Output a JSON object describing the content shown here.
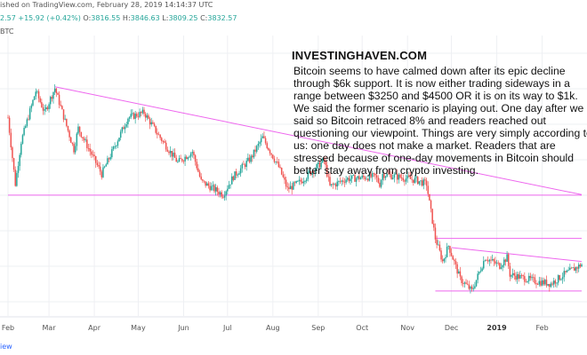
{
  "header": {
    "published": "ished on TradingView.com, February 28, 2019 14:14:37 UTC",
    "ohlc_prefix": "2.57",
    "change": "+15.92 (+0.42%)",
    "o_label": "O:",
    "o_value": "3816.55",
    "h_label": "H:",
    "h_value": "3846.63",
    "l_label": "L:",
    "l_value": "3809.25",
    "c_label": "C:",
    "c_value": "3832.57",
    "symbol": "BTC"
  },
  "annotation": {
    "brand": "INVESTINGHAVEN.COM",
    "text": "Bitcoin seems to have calmed down after its epic decline through $6k support. It is now either trading sideways in a range between $3250 and $4500 OR it is on its way to $1k. We said the former scenario is playing out. One day after we said so Bitcoin retraced 8% and readers reached out questioning our viewpoint. Things are very simply according to us: one day does not make a market. Readers that are stressed because of one-day movements in Bitcoin should better stay away from crypto investing."
  },
  "footer": {
    "link": "iew"
  },
  "colors": {
    "up": "#26a69a",
    "down": "#ef5350",
    "trendline": "#ee66ee",
    "grid": "#eef0f3"
  },
  "chart_data": {
    "type": "candlestick",
    "x_start": "2018-02-01",
    "x_end": "2019-02-28",
    "ylim": [
      2800,
      12000
    ],
    "y_scale": "log",
    "grid": true,
    "xticks": [
      {
        "label": "Feb",
        "date": "2018-02-01",
        "bold": false
      },
      {
        "label": "Mar",
        "date": "2018-03-01",
        "bold": false
      },
      {
        "label": "Apr",
        "date": "2018-04-01",
        "bold": false
      },
      {
        "label": "May",
        "date": "2018-05-01",
        "bold": false
      },
      {
        "label": "Jun",
        "date": "2018-06-01",
        "bold": false
      },
      {
        "label": "Jul",
        "date": "2018-07-01",
        "bold": false
      },
      {
        "label": "Aug",
        "date": "2018-08-01",
        "bold": false
      },
      {
        "label": "Sep",
        "date": "2018-09-01",
        "bold": false
      },
      {
        "label": "Oct",
        "date": "2018-10-01",
        "bold": false
      },
      {
        "label": "Nov",
        "date": "2018-11-01",
        "bold": false
      },
      {
        "label": "Dec",
        "date": "2018-12-01",
        "bold": false
      },
      {
        "label": "2019",
        "date": "2019-01-01",
        "bold": true
      },
      {
        "label": "Feb",
        "date": "2019-02-01",
        "bold": false
      }
    ],
    "price_path": [
      {
        "date": "2018-02-01",
        "price": 9500
      },
      {
        "date": "2018-02-06",
        "price": 6300
      },
      {
        "date": "2018-02-10",
        "price": 8200
      },
      {
        "date": "2018-02-20",
        "price": 11200
      },
      {
        "date": "2018-02-26",
        "price": 9800
      },
      {
        "date": "2018-03-05",
        "price": 11400
      },
      {
        "date": "2018-03-18",
        "price": 7800
      },
      {
        "date": "2018-03-21",
        "price": 8900
      },
      {
        "date": "2018-04-06",
        "price": 6700
      },
      {
        "date": "2018-04-24",
        "price": 9500
      },
      {
        "date": "2018-05-05",
        "price": 9800
      },
      {
        "date": "2018-05-15",
        "price": 8500
      },
      {
        "date": "2018-05-28",
        "price": 7200
      },
      {
        "date": "2018-06-07",
        "price": 7700
      },
      {
        "date": "2018-06-13",
        "price": 6400
      },
      {
        "date": "2018-06-28",
        "price": 5900
      },
      {
        "date": "2018-07-05",
        "price": 6600
      },
      {
        "date": "2018-07-17",
        "price": 7400
      },
      {
        "date": "2018-07-25",
        "price": 8400
      },
      {
        "date": "2018-08-05",
        "price": 7000
      },
      {
        "date": "2018-08-11",
        "price": 6100
      },
      {
        "date": "2018-08-20",
        "price": 6400
      },
      {
        "date": "2018-09-05",
        "price": 7300
      },
      {
        "date": "2018-09-09",
        "price": 6200
      },
      {
        "date": "2018-09-20",
        "price": 6500
      },
      {
        "date": "2018-10-10",
        "price": 6600
      },
      {
        "date": "2018-10-13",
        "price": 6300
      },
      {
        "date": "2018-10-15",
        "price": 6700
      },
      {
        "date": "2018-11-07",
        "price": 6450
      },
      {
        "date": "2018-11-14",
        "price": 6300
      },
      {
        "date": "2018-11-16",
        "price": 5600
      },
      {
        "date": "2018-11-20",
        "price": 4500
      },
      {
        "date": "2018-11-25",
        "price": 3900
      },
      {
        "date": "2018-11-29",
        "price": 4300
      },
      {
        "date": "2018-12-07",
        "price": 3500
      },
      {
        "date": "2018-12-15",
        "price": 3250
      },
      {
        "date": "2018-12-24",
        "price": 4000
      },
      {
        "date": "2019-01-03",
        "price": 3800
      },
      {
        "date": "2019-01-08",
        "price": 4000
      },
      {
        "date": "2019-01-10",
        "price": 3600
      },
      {
        "date": "2019-01-28",
        "price": 3450
      },
      {
        "date": "2019-02-07",
        "price": 3400
      },
      {
        "date": "2019-02-16",
        "price": 3600
      },
      {
        "date": "2019-02-24",
        "price": 3750
      },
      {
        "date": "2019-02-28",
        "price": 3832.57
      }
    ],
    "trendlines": [
      {
        "start": {
          "date": "2018-03-05",
          "price": 11500
        },
        "end": {
          "date": "2019-02-28",
          "price": 5900
        }
      },
      {
        "start": {
          "date": "2018-12-01",
          "price": 4250
        },
        "end": {
          "date": "2019-02-28",
          "price": 3900
        }
      }
    ],
    "support_lines": [
      {
        "price": 5880,
        "start": "2018-02-01",
        "end": "2019-02-28"
      },
      {
        "price": 4500,
        "start": "2018-11-20",
        "end": "2019-02-28"
      },
      {
        "price": 3250,
        "start": "2018-11-20",
        "end": "2019-02-28"
      }
    ]
  }
}
